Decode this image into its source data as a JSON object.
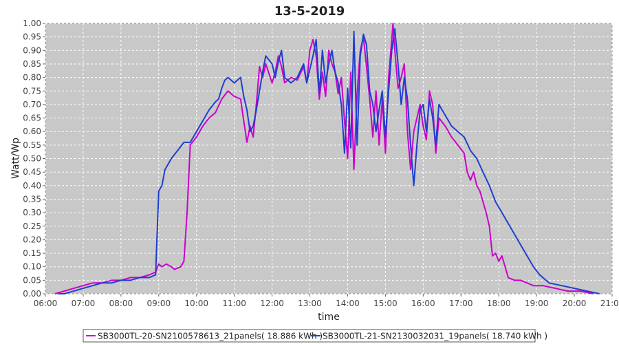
{
  "chart_data": {
    "type": "line",
    "title": "13-5-2019",
    "xlabel": "time",
    "ylabel": "Watt/Wp",
    "xlim": [
      "06:00",
      "21:00"
    ],
    "ylim": [
      0,
      1.0
    ],
    "x_ticks": [
      "06:00",
      "07:00",
      "08:00",
      "09:00",
      "10:00",
      "11:00",
      "12:00",
      "13:00",
      "14:00",
      "15:00",
      "16:00",
      "17:00",
      "18:00",
      "19:00",
      "20:00",
      "21:00"
    ],
    "y_ticks": [
      "0.00",
      "0.05",
      "0.10",
      "0.15",
      "0.20",
      "0.25",
      "0.30",
      "0.35",
      "0.40",
      "0.45",
      "0.50",
      "0.55",
      "0.60",
      "0.65",
      "0.70",
      "0.75",
      "0.80",
      "0.85",
      "0.90",
      "0.95",
      "1.00"
    ],
    "grid": true,
    "legend_position": "bottom",
    "series": [
      {
        "name": "SB3000TL-20-SN2100578613_21panels( 18.886 kWh )",
        "color": "#cc00cc",
        "points": [
          [
            "06:15",
            0.0
          ],
          [
            "06:30",
            0.01
          ],
          [
            "06:45",
            0.02
          ],
          [
            "07:00",
            0.03
          ],
          [
            "07:15",
            0.04
          ],
          [
            "07:30",
            0.04
          ],
          [
            "07:45",
            0.05
          ],
          [
            "08:00",
            0.05
          ],
          [
            "08:15",
            0.06
          ],
          [
            "08:30",
            0.06
          ],
          [
            "08:45",
            0.07
          ],
          [
            "08:55",
            0.08
          ],
          [
            "09:00",
            0.11
          ],
          [
            "09:05",
            0.1
          ],
          [
            "09:12",
            0.11
          ],
          [
            "09:20",
            0.1
          ],
          [
            "09:25",
            0.09
          ],
          [
            "09:35",
            0.1
          ],
          [
            "09:40",
            0.12
          ],
          [
            "09:45",
            0.3
          ],
          [
            "09:50",
            0.55
          ],
          [
            "10:00",
            0.58
          ],
          [
            "10:10",
            0.62
          ],
          [
            "10:20",
            0.65
          ],
          [
            "10:30",
            0.67
          ],
          [
            "10:40",
            0.72
          ],
          [
            "10:50",
            0.75
          ],
          [
            "11:00",
            0.73
          ],
          [
            "11:10",
            0.72
          ],
          [
            "11:15",
            0.64
          ],
          [
            "11:20",
            0.56
          ],
          [
            "11:25",
            0.62
          ],
          [
            "11:30",
            0.58
          ],
          [
            "11:35",
            0.7
          ],
          [
            "11:40",
            0.84
          ],
          [
            "11:45",
            0.8
          ],
          [
            "11:50",
            0.85
          ],
          [
            "12:00",
            0.78
          ],
          [
            "12:05",
            0.82
          ],
          [
            "12:10",
            0.88
          ],
          [
            "12:15",
            0.84
          ],
          [
            "12:20",
            0.78
          ],
          [
            "12:30",
            0.8
          ],
          [
            "12:40",
            0.79
          ],
          [
            "12:50",
            0.84
          ],
          [
            "12:55",
            0.78
          ],
          [
            "13:00",
            0.9
          ],
          [
            "13:05",
            0.94
          ],
          [
            "13:10",
            0.88
          ],
          [
            "13:15",
            0.72
          ],
          [
            "13:20",
            0.82
          ],
          [
            "13:25",
            0.73
          ],
          [
            "13:30",
            0.9
          ],
          [
            "13:35",
            0.85
          ],
          [
            "13:40",
            0.82
          ],
          [
            "13:45",
            0.74
          ],
          [
            "13:50",
            0.8
          ],
          [
            "13:55",
            0.64
          ],
          [
            "14:00",
            0.5
          ],
          [
            "14:05",
            0.82
          ],
          [
            "14:10",
            0.46
          ],
          [
            "14:15",
            0.74
          ],
          [
            "14:20",
            0.9
          ],
          [
            "14:25",
            0.95
          ],
          [
            "14:30",
            0.84
          ],
          [
            "14:35",
            0.72
          ],
          [
            "14:40",
            0.58
          ],
          [
            "14:45",
            0.75
          ],
          [
            "14:50",
            0.55
          ],
          [
            "14:55",
            0.72
          ],
          [
            "15:00",
            0.52
          ],
          [
            "15:05",
            0.8
          ],
          [
            "15:10",
            0.94
          ],
          [
            "15:12",
            1.0
          ],
          [
            "15:15",
            0.9
          ],
          [
            "15:20",
            0.76
          ],
          [
            "15:25",
            0.8
          ],
          [
            "15:30",
            0.85
          ],
          [
            "15:35",
            0.6
          ],
          [
            "15:40",
            0.46
          ],
          [
            "15:45",
            0.6
          ],
          [
            "15:50",
            0.65
          ],
          [
            "15:55",
            0.7
          ],
          [
            "16:00",
            0.62
          ],
          [
            "16:05",
            0.57
          ],
          [
            "16:10",
            0.75
          ],
          [
            "16:15",
            0.7
          ],
          [
            "16:20",
            0.52
          ],
          [
            "16:25",
            0.65
          ],
          [
            "16:35",
            0.62
          ],
          [
            "16:45",
            0.58
          ],
          [
            "16:55",
            0.55
          ],
          [
            "17:05",
            0.52
          ],
          [
            "17:10",
            0.45
          ],
          [
            "17:15",
            0.42
          ],
          [
            "17:20",
            0.45
          ],
          [
            "17:25",
            0.4
          ],
          [
            "17:30",
            0.38
          ],
          [
            "17:35",
            0.34
          ],
          [
            "17:40",
            0.3
          ],
          [
            "17:45",
            0.25
          ],
          [
            "17:50",
            0.14
          ],
          [
            "17:55",
            0.15
          ],
          [
            "18:00",
            0.12
          ],
          [
            "18:05",
            0.14
          ],
          [
            "18:10",
            0.1
          ],
          [
            "18:15",
            0.06
          ],
          [
            "18:25",
            0.05
          ],
          [
            "18:35",
            0.05
          ],
          [
            "18:45",
            0.04
          ],
          [
            "18:55",
            0.03
          ],
          [
            "19:10",
            0.03
          ],
          [
            "19:30",
            0.02
          ],
          [
            "19:50",
            0.01
          ],
          [
            "20:10",
            0.01
          ],
          [
            "20:30",
            0.0
          ]
        ]
      },
      {
        "name": "SB3000TL-21-SN2130032031_19panels( 18.740 kWh )",
        "color": "#1c3fd0",
        "points": [
          [
            "06:20",
            0.0
          ],
          [
            "06:30",
            0.0
          ],
          [
            "06:45",
            0.01
          ],
          [
            "07:00",
            0.02
          ],
          [
            "07:15",
            0.03
          ],
          [
            "07:30",
            0.04
          ],
          [
            "07:45",
            0.04
          ],
          [
            "08:00",
            0.05
          ],
          [
            "08:15",
            0.05
          ],
          [
            "08:30",
            0.06
          ],
          [
            "08:45",
            0.06
          ],
          [
            "08:55",
            0.07
          ],
          [
            "09:00",
            0.38
          ],
          [
            "09:05",
            0.4
          ],
          [
            "09:10",
            0.46
          ],
          [
            "09:20",
            0.5
          ],
          [
            "09:30",
            0.53
          ],
          [
            "09:40",
            0.56
          ],
          [
            "09:50",
            0.56
          ],
          [
            "10:00",
            0.6
          ],
          [
            "10:10",
            0.64
          ],
          [
            "10:20",
            0.68
          ],
          [
            "10:30",
            0.71
          ],
          [
            "10:35",
            0.72
          ],
          [
            "10:40",
            0.76
          ],
          [
            "10:45",
            0.79
          ],
          [
            "10:50",
            0.8
          ],
          [
            "11:00",
            0.78
          ],
          [
            "11:05",
            0.79
          ],
          [
            "11:10",
            0.8
          ],
          [
            "11:15",
            0.73
          ],
          [
            "11:20",
            0.68
          ],
          [
            "11:25",
            0.6
          ],
          [
            "11:30",
            0.62
          ],
          [
            "11:35",
            0.68
          ],
          [
            "11:40",
            0.75
          ],
          [
            "11:45",
            0.82
          ],
          [
            "11:50",
            0.88
          ],
          [
            "12:00",
            0.85
          ],
          [
            "12:05",
            0.8
          ],
          [
            "12:10",
            0.86
          ],
          [
            "12:15",
            0.9
          ],
          [
            "12:20",
            0.8
          ],
          [
            "12:30",
            0.78
          ],
          [
            "12:40",
            0.8
          ],
          [
            "12:50",
            0.85
          ],
          [
            "12:55",
            0.78
          ],
          [
            "13:00",
            0.83
          ],
          [
            "13:05",
            0.88
          ],
          [
            "13:10",
            0.94
          ],
          [
            "13:15",
            0.74
          ],
          [
            "13:20",
            0.9
          ],
          [
            "13:25",
            0.78
          ],
          [
            "13:30",
            0.85
          ],
          [
            "13:35",
            0.9
          ],
          [
            "13:40",
            0.82
          ],
          [
            "13:45",
            0.78
          ],
          [
            "13:50",
            0.7
          ],
          [
            "13:55",
            0.52
          ],
          [
            "14:00",
            0.76
          ],
          [
            "14:05",
            0.54
          ],
          [
            "14:10",
            0.97
          ],
          [
            "14:15",
            0.55
          ],
          [
            "14:20",
            0.88
          ],
          [
            "14:25",
            0.96
          ],
          [
            "14:30",
            0.92
          ],
          [
            "14:35",
            0.75
          ],
          [
            "14:40",
            0.7
          ],
          [
            "14:45",
            0.6
          ],
          [
            "14:50",
            0.68
          ],
          [
            "14:55",
            0.75
          ],
          [
            "15:00",
            0.58
          ],
          [
            "15:05",
            0.75
          ],
          [
            "15:10",
            0.9
          ],
          [
            "15:15",
            0.98
          ],
          [
            "15:20",
            0.85
          ],
          [
            "15:25",
            0.7
          ],
          [
            "15:30",
            0.8
          ],
          [
            "15:35",
            0.72
          ],
          [
            "15:40",
            0.55
          ],
          [
            "15:45",
            0.4
          ],
          [
            "15:50",
            0.55
          ],
          [
            "15:55",
            0.68
          ],
          [
            "16:00",
            0.7
          ],
          [
            "16:05",
            0.6
          ],
          [
            "16:10",
            0.72
          ],
          [
            "16:15",
            0.65
          ],
          [
            "16:20",
            0.55
          ],
          [
            "16:25",
            0.7
          ],
          [
            "16:35",
            0.66
          ],
          [
            "16:45",
            0.62
          ],
          [
            "16:55",
            0.6
          ],
          [
            "17:05",
            0.58
          ],
          [
            "17:15",
            0.53
          ],
          [
            "17:25",
            0.5
          ],
          [
            "17:35",
            0.45
          ],
          [
            "17:45",
            0.4
          ],
          [
            "17:55",
            0.34
          ],
          [
            "18:05",
            0.3
          ],
          [
            "18:15",
            0.26
          ],
          [
            "18:25",
            0.22
          ],
          [
            "18:35",
            0.18
          ],
          [
            "18:45",
            0.14
          ],
          [
            "18:55",
            0.1
          ],
          [
            "19:05",
            0.07
          ],
          [
            "19:20",
            0.04
          ],
          [
            "19:40",
            0.03
          ],
          [
            "20:00",
            0.02
          ],
          [
            "20:20",
            0.01
          ],
          [
            "20:40",
            0.0
          ]
        ]
      }
    ]
  }
}
